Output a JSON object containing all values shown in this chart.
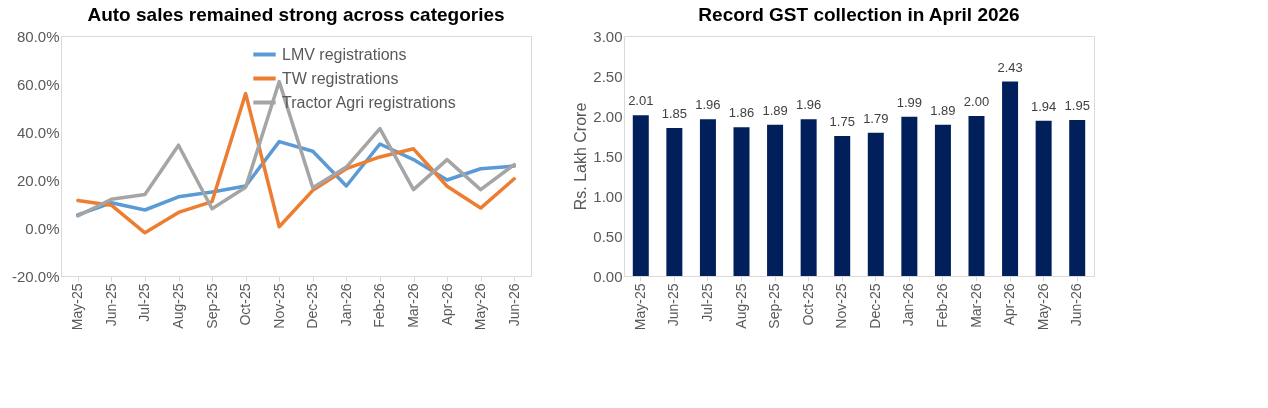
{
  "chart_data": [
    {
      "type": "line",
      "title": "Auto sales remained strong across categories",
      "categories": [
        "May-25",
        "Jun-25",
        "Jul-25",
        "Aug-25",
        "Sep-25",
        "Oct-25",
        "Nov-25",
        "Dec-25",
        "Jan-26",
        "Feb-26",
        "Mar-26",
        "Apr-26",
        "May-26",
        "Jun-26"
      ],
      "series": [
        {
          "name": "LMV registrations",
          "color": "#5b9bd5",
          "values": [
            5.5,
            10.5,
            7.5,
            13,
            15,
            17.5,
            36,
            32,
            17.5,
            35,
            28.5,
            20,
            24.7,
            25.8
          ]
        },
        {
          "name": "TW registrations",
          "color": "#ed7d31",
          "values": [
            11.5,
            9.5,
            -2,
            6.5,
            11,
            56,
            0.5,
            15.7,
            24.7,
            29.6,
            33,
            17.4,
            8.3,
            20.5
          ]
        },
        {
          "name": "Tractor Agri registrations",
          "color": "#a5a5a5",
          "values": [
            5,
            12,
            14,
            34.5,
            8,
            17,
            61,
            16.8,
            25.4,
            41.4,
            16,
            28.5,
            16,
            26.4
          ]
        }
      ],
      "ylim": [
        -20,
        80
      ],
      "yticks": [
        {
          "value": -20,
          "label": "-20.0%"
        },
        {
          "value": 0,
          "label": "0.0%"
        },
        {
          "value": 20,
          "label": "20.0%"
        },
        {
          "value": 40,
          "label": "40.0%"
        },
        {
          "value": 60,
          "label": "60.0%"
        },
        {
          "value": 80,
          "label": "80.0%"
        }
      ],
      "grid": false,
      "legend": "top",
      "marker": "none",
      "line_style": "solid"
    },
    {
      "type": "bar",
      "title": "Record GST collection in April 2026",
      "ylabel": "Rs. Lakh Crore",
      "categories": [
        "May-25",
        "Jun-25",
        "Jul-25",
        "Aug-25",
        "Sep-25",
        "Oct-25",
        "Nov-25",
        "Dec-25",
        "Jan-26",
        "Feb-26",
        "Mar-26",
        "Apr-26",
        "May-26",
        "Jun-26"
      ],
      "series": [
        {
          "color": "#001f5b",
          "values": [
            2.01,
            1.85,
            1.96,
            1.86,
            1.89,
            1.96,
            1.75,
            1.79,
            1.99,
            1.89,
            2.0,
            2.43,
            1.94,
            1.95
          ]
        }
      ],
      "value_labels": [
        "2.01",
        "1.85",
        "1.96",
        "1.86",
        "1.89",
        "1.96",
        "1.75",
        "1.79",
        "1.99",
        "1.89",
        "2.00",
        "2.43",
        "1.94",
        "1.95"
      ],
      "ylim": [
        0,
        3
      ],
      "yticks": [
        {
          "value": 0,
          "label": "0.00"
        },
        {
          "value": 0.5,
          "label": "0.50"
        },
        {
          "value": 1,
          "label": "1.00"
        },
        {
          "value": 1.5,
          "label": "1.50"
        },
        {
          "value": 2,
          "label": "2.00"
        },
        {
          "value": 2.5,
          "label": "2.50"
        },
        {
          "value": 3,
          "label": "3.00"
        }
      ],
      "grid": false
    }
  ]
}
